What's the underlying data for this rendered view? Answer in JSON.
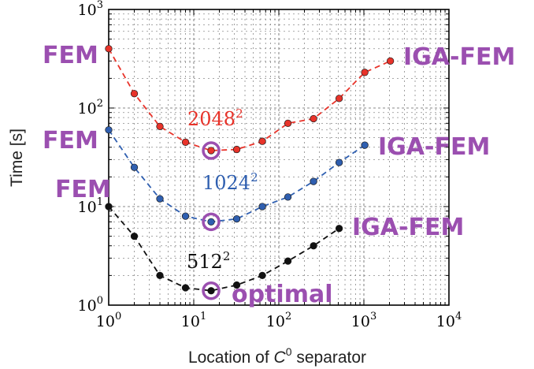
{
  "chart_data": {
    "type": "line",
    "xlabel_prefix": "Location of ",
    "xlabel_var": "C",
    "xlabel_sup": "0",
    "xlabel_suffix": " separator",
    "ylabel": "Time [s]",
    "xscale": "log",
    "yscale": "log",
    "xlim": [
      1,
      10000
    ],
    "ylim": [
      1,
      1000
    ],
    "grid": true,
    "xticks": [
      {
        "base": "10",
        "exp": "0"
      },
      {
        "base": "10",
        "exp": "1"
      },
      {
        "base": "10",
        "exp": "2"
      },
      {
        "base": "10",
        "exp": "3"
      },
      {
        "base": "10",
        "exp": "4"
      }
    ],
    "yticks": [
      {
        "base": "10",
        "exp": "0"
      },
      {
        "base": "10",
        "exp": "1"
      },
      {
        "base": "10",
        "exp": "2"
      },
      {
        "base": "10",
        "exp": "3"
      }
    ],
    "series": [
      {
        "name": "2048",
        "name_sup": "2",
        "color": "#e8332a",
        "x": [
          1,
          2,
          4,
          8,
          16,
          32,
          64,
          128,
          256,
          512,
          1024,
          2048
        ],
        "y": [
          400,
          140,
          65,
          45,
          37,
          38,
          46,
          70,
          78,
          125,
          230,
          300
        ]
      },
      {
        "name": "1024",
        "name_sup": "2",
        "color": "#2f5fb0",
        "x": [
          1,
          2,
          4,
          8,
          16,
          32,
          64,
          128,
          256,
          512,
          1024
        ],
        "y": [
          60,
          25,
          12,
          8,
          7,
          7.5,
          10,
          12.5,
          18,
          28,
          42
        ]
      },
      {
        "name": "512",
        "name_sup": "2",
        "color": "#111111",
        "x": [
          1,
          2,
          4,
          8,
          16,
          32,
          64,
          128,
          256,
          512
        ],
        "y": [
          10,
          5,
          2,
          1.5,
          1.4,
          1.6,
          2,
          2.8,
          4,
          6
        ]
      }
    ],
    "optimal": [
      {
        "x": 16,
        "y": 37
      },
      {
        "x": 16,
        "y": 7
      },
      {
        "x": 16,
        "y": 1.4
      }
    ]
  },
  "annotations": {
    "fem": "FEM",
    "igafem": "IGA-FEM",
    "optimal": "optimal",
    "accent_color": "#9b4fb0"
  }
}
